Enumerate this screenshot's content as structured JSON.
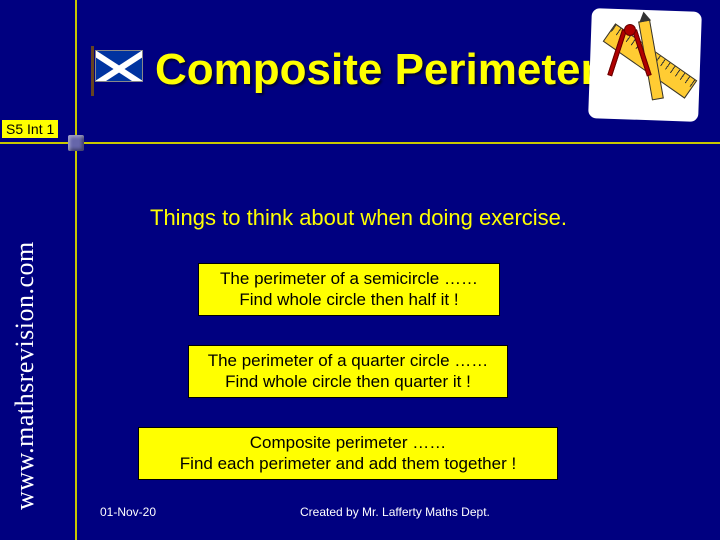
{
  "title": "Composite Perimeter",
  "level_badge": "S5 Int 1",
  "website": "www.mathsrevision.com",
  "subtitle": "Things to think about when doing exercise.",
  "tips": [
    {
      "line1": "The perimeter of a semicircle ……",
      "line2": "Find whole circle then half it !"
    },
    {
      "line1": "The perimeter of a quarter circle ……",
      "line2": "Find whole circle then quarter it !"
    },
    {
      "line1": "Composite perimeter ……",
      "line2": "Find each perimeter and add them together !"
    }
  ],
  "footer": {
    "date": "01-Nov-20",
    "credit": "Created by Mr. Lafferty Maths Dept."
  },
  "colors": {
    "background": "#000080",
    "accent": "#ffff00",
    "line": "#c8c800",
    "text_light": "#ffffff"
  }
}
